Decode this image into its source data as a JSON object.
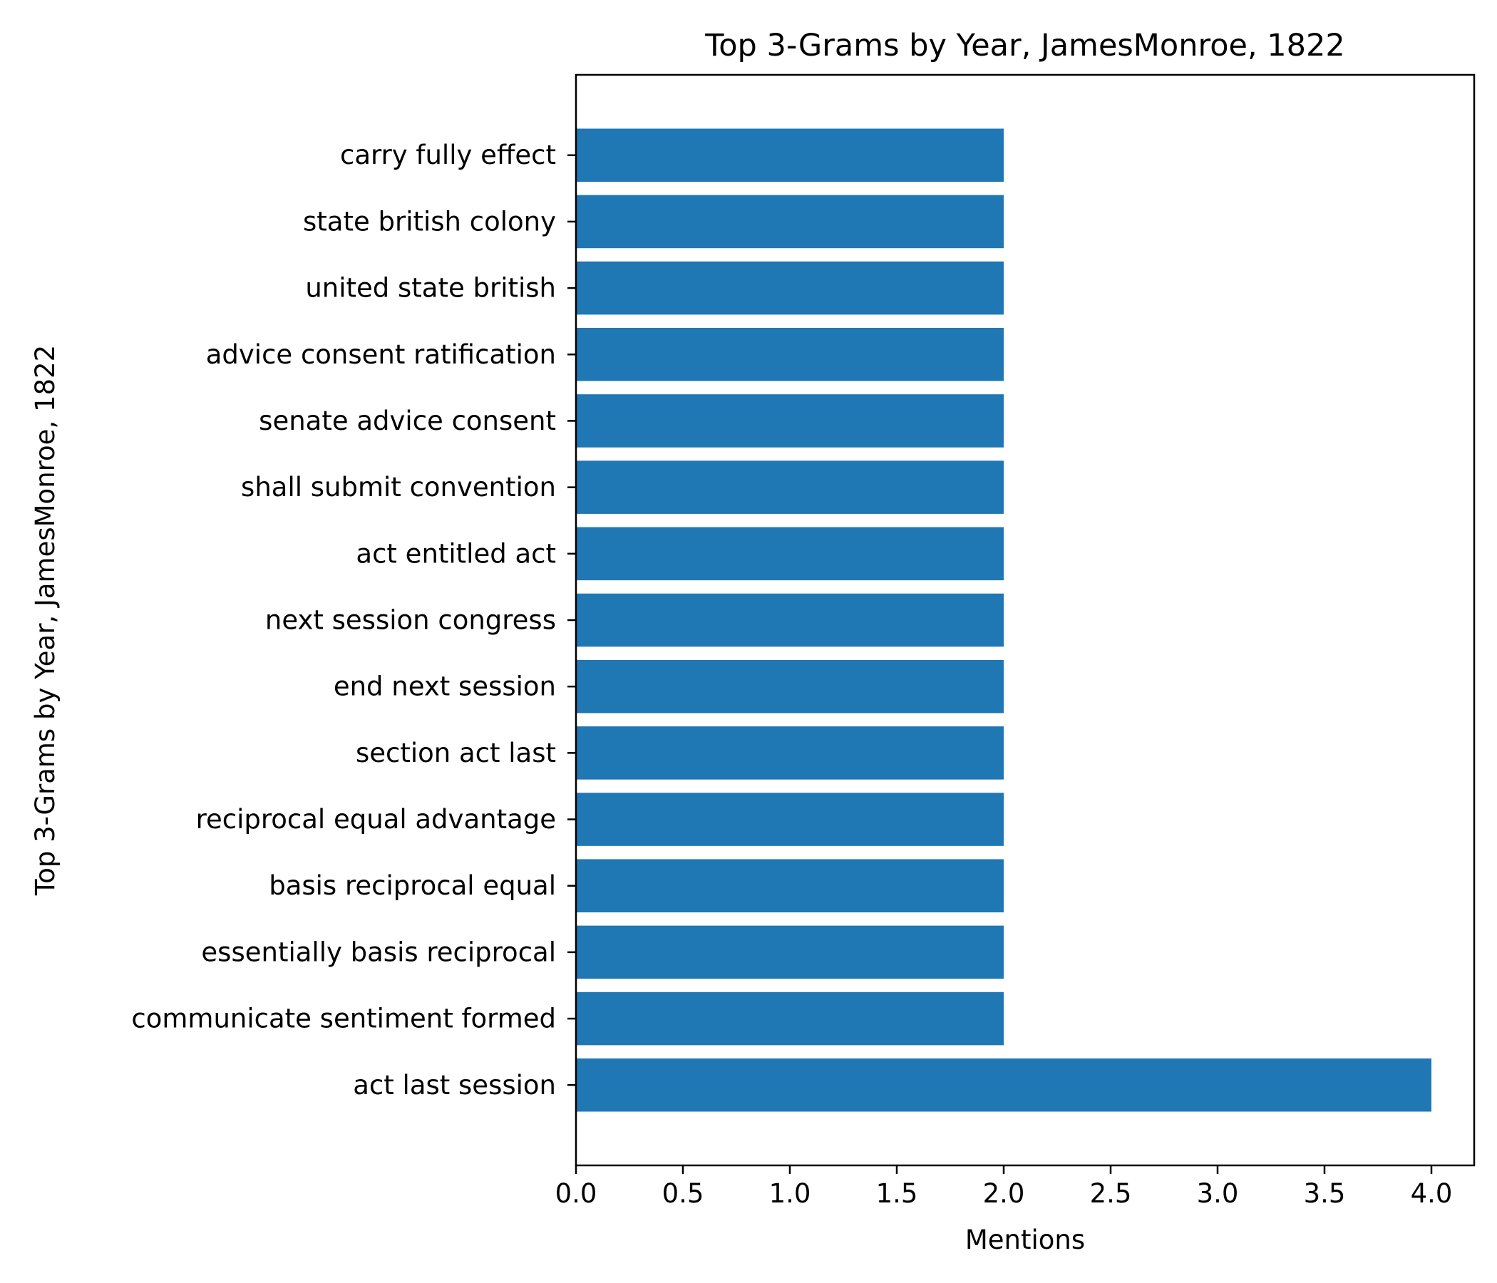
{
  "chart_data": {
    "type": "bar",
    "orientation": "horizontal",
    "title": "Top 3-Grams by Year, JamesMonroe, 1822",
    "xlabel": "Mentions",
    "ylabel": "Top 3-Grams by Year, JamesMonroe, 1822",
    "xlim": [
      0,
      4.2
    ],
    "xticks": [
      "0.0",
      "0.5",
      "1.0",
      "1.5",
      "2.0",
      "2.5",
      "3.0",
      "3.5",
      "4.0"
    ],
    "categories": [
      "act last session",
      "communicate sentiment formed",
      "essentially basis reciprocal",
      "basis reciprocal equal",
      "reciprocal equal advantage",
      "section act last",
      "end next session",
      "next session congress",
      "act entitled act",
      "shall submit convention",
      "senate advice consent",
      "advice consent ratification",
      "united state british",
      "state british colony",
      "carry fully effect"
    ],
    "values": [
      4,
      2,
      2,
      2,
      2,
      2,
      2,
      2,
      2,
      2,
      2,
      2,
      2,
      2,
      2
    ],
    "bar_color": "#1f77b4",
    "grid": false,
    "legend": "none"
  }
}
